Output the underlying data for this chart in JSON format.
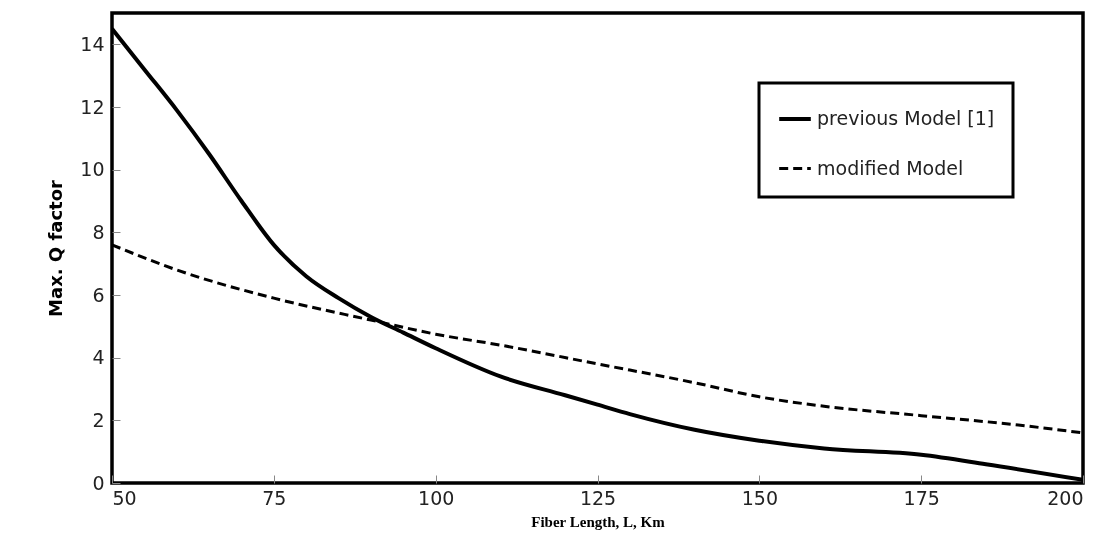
{
  "chart_data": {
    "type": "line",
    "xlabel": "Fiber Length, L, Km",
    "ylabel": "Max. Q factor",
    "xlim": [
      50,
      200
    ],
    "xticks": [
      50,
      75,
      100,
      125,
      150,
      175,
      200
    ],
    "ylim": [
      0,
      15
    ],
    "yticks": [
      0,
      2,
      4,
      6,
      8,
      10,
      12,
      14
    ],
    "grid": false,
    "legend": "top right",
    "marker": "none",
    "series": [
      {
        "name": "previous Model [1]",
        "color": "#000000",
        "line_style": "solid",
        "x": [
          50,
          55,
          60,
          65,
          70,
          75,
          80,
          85,
          90,
          95,
          100,
          110,
          120,
          125,
          130,
          140,
          150,
          160,
          175,
          185,
          200
        ],
        "values": [
          14.5,
          13.2,
          11.9,
          10.5,
          9.0,
          7.6,
          6.6,
          5.9,
          5.3,
          4.8,
          4.3,
          3.4,
          2.8,
          2.5,
          2.2,
          1.7,
          1.35,
          1.1,
          0.9,
          0.6,
          0.1
        ]
      },
      {
        "name": "modified Model",
        "color": "#000000",
        "line_style": "dashed",
        "x": [
          50,
          60,
          75,
          90,
          100,
          110,
          125,
          140,
          150,
          160,
          175,
          190,
          200
        ],
        "values": [
          7.6,
          6.8,
          5.9,
          5.2,
          4.75,
          4.4,
          3.8,
          3.2,
          2.75,
          2.45,
          2.15,
          1.85,
          1.6
        ]
      }
    ]
  }
}
